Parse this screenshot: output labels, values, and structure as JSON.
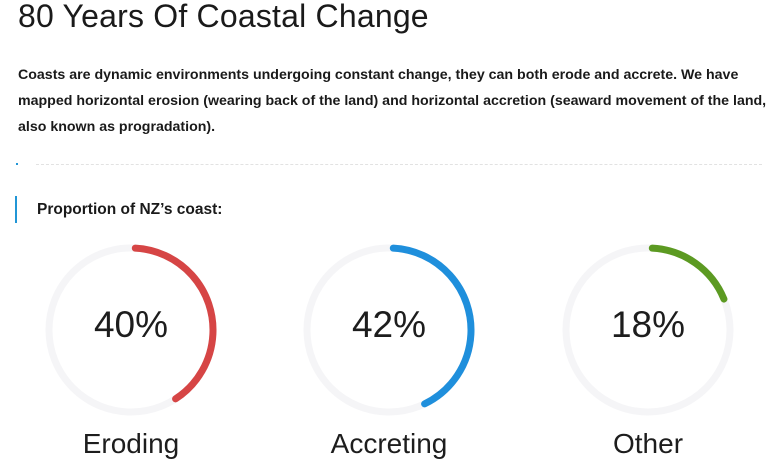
{
  "header": {
    "title": "80 Years Of Coastal Change"
  },
  "intro": "Coasts are dynamic environments undergoing constant change, they can both erode and accrete. We have mapped horizontal erosion (wearing back of the land) and horizontal accretion (seaward movement of the land, also known as progradation).",
  "subtitle": "Proportion of NZ’s coast:",
  "track_color": "#f5f5f7",
  "stats": [
    {
      "percent": 40,
      "percent_label": "40%",
      "label": "Eroding",
      "color": "#d64545"
    },
    {
      "percent": 42,
      "percent_label": "42%",
      "label": "Accreting",
      "color": "#1f8fdc"
    },
    {
      "percent": 18,
      "percent_label": "18%",
      "label": "Other",
      "color": "#5c9a22"
    }
  ]
}
